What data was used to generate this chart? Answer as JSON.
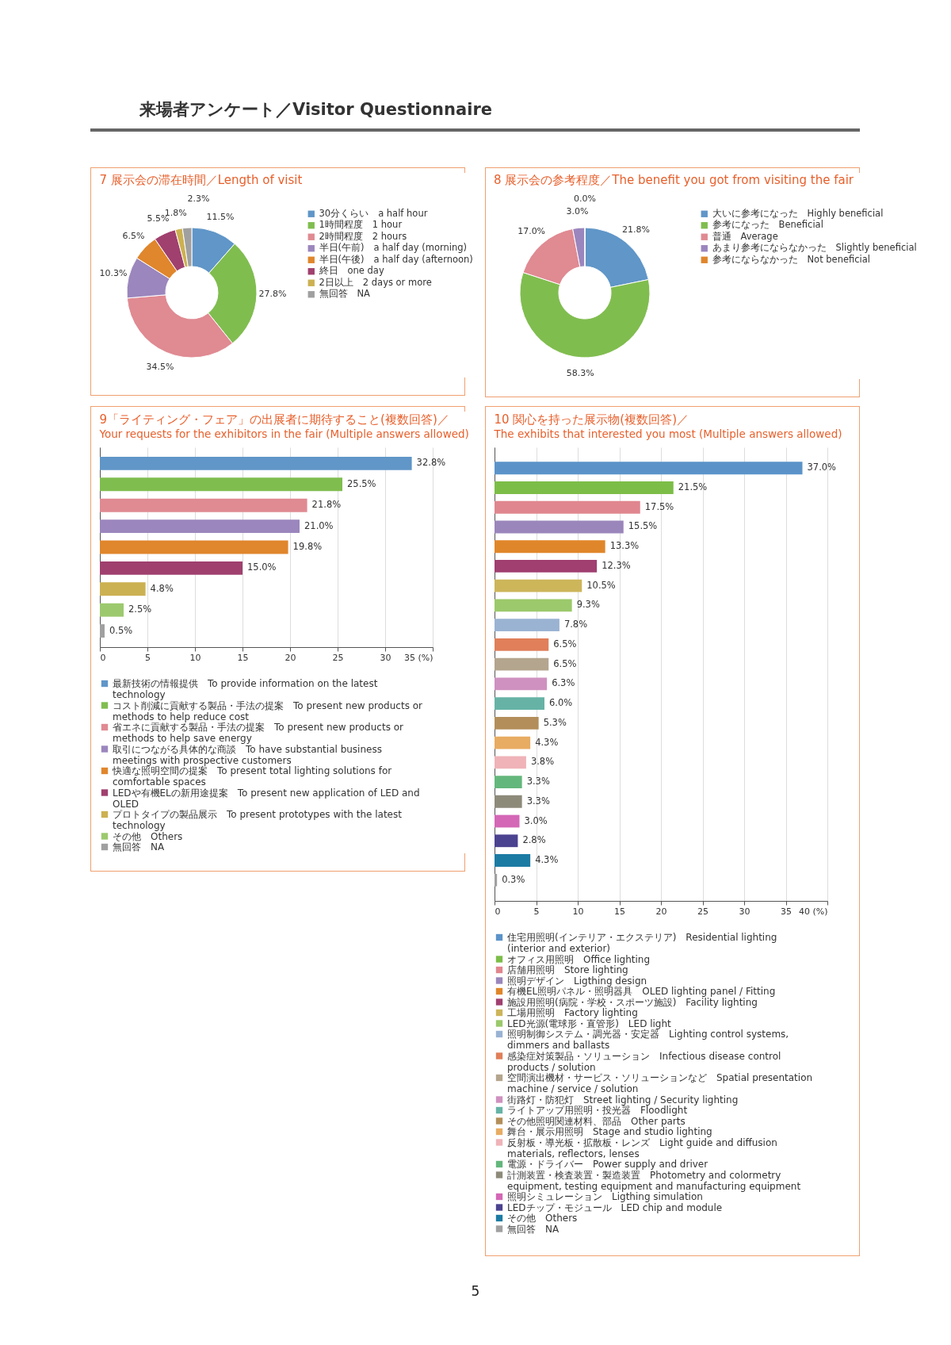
{
  "chart_data": [
    {
      "type": "donut",
      "title": "7 展示会の滞在時間／Length of visit",
      "annotations": [
        "来場者アンケート／Visitor Questionnaire",
        "5"
      ],
      "categories": [
        "30分くらい　a half hour",
        "1時間程度　1 hour",
        "2時間程度　2 hours",
        "半日(午前)　a half day (morning)",
        "半日(午後)　a half day (afternoon)",
        "終日　one day",
        "2日以上　2 days or more",
        "無回答　NA"
      ],
      "values": [
        11.5,
        27.8,
        34.5,
        10.3,
        6.5,
        5.5,
        1.8,
        2.3
      ],
      "value_labels": [
        "11.5%",
        "27.8%",
        "34.5%",
        "10.3%",
        "6.5%",
        "5.5%",
        "1.8%",
        "2.3%"
      ],
      "colors": [
        "#6096c8",
        "#80bd4f",
        "#e08a92",
        "#9b86bd",
        "#e0862c",
        "#a0406e",
        "#ccb152",
        "#a0a0a0"
      ],
      "legend": "right"
    },
    {
      "type": "donut",
      "title": "8 展示会の参考程度／The benefit you got from visiting the fair",
      "categories": [
        "大いに参考になった　Highly beneficial",
        "参考になった　Beneficial",
        "普通　Average",
        "あまり参考にならなかった　Slightly beneficial",
        "参考にならなかった　Not beneficial"
      ],
      "values": [
        21.8,
        58.3,
        17.0,
        3.0,
        0.0
      ],
      "value_labels": [
        "21.8%",
        "58.3%",
        "17.0%",
        "3.0%",
        "0.0%"
      ],
      "colors": [
        "#6096c8",
        "#80bd4f",
        "#e08a92",
        "#9b86bd",
        "#e0862c"
      ],
      "legend": "right"
    },
    {
      "type": "bar",
      "orientation": "horizontal",
      "title": "9「ライティング・フェア」の出展者に期待すること(複数回答)／",
      "subtitle": "Your requests for the exhibitors in the fair (Multiple answers allowed)",
      "categories": [
        null
      ],
      "series": [
        {
          "name": "最新技術の情報提供　To provide information on the latest technology",
          "color": "#6096c8",
          "values": [
            32.8
          ],
          "value_labels": [
            "32.8%"
          ]
        },
        {
          "name": "コスト削減に貢献する製品・手法の提案　To present new products or methods to help reduce cost",
          "color": "#80bd4f",
          "values": [
            25.5
          ],
          "value_labels": [
            "25.5%"
          ]
        },
        {
          "name": "省エネに貢献する製品・手法の提案　To present new products or methods to help save energy",
          "color": "#e08a92",
          "values": [
            21.8
          ],
          "value_labels": [
            "21.8%"
          ]
        },
        {
          "name": "取引につながる具体的な商談　To have substantial business meetings with prospective customers",
          "color": "#9b86bd",
          "values": [
            21.0
          ],
          "value_labels": [
            "21.0%"
          ]
        },
        {
          "name": "快適な照明空間の提案　To present total lighting solutions for comfortable spaces",
          "color": "#e0862c",
          "values": [
            19.8
          ],
          "value_labels": [
            "19.8%"
          ]
        },
        {
          "name": "LEDや有機ELの新用途提案　To present new application of LED and OLED",
          "color": "#a0406e",
          "values": [
            15.0
          ],
          "value_labels": [
            "15.0%"
          ]
        },
        {
          "name": "プロトタイプの製品展示　To present prototypes with the latest technology",
          "color": "#ccb152",
          "values": [
            4.8
          ],
          "value_labels": [
            "4.8%"
          ]
        },
        {
          "name": "その他　Others",
          "color": "#9cc96e",
          "values": [
            2.5
          ],
          "value_labels": [
            "2.5%"
          ]
        },
        {
          "name": "無回答　NA",
          "color": "#a0a0a0",
          "values": [
            0.5
          ],
          "value_labels": [
            "0.5%"
          ]
        }
      ],
      "xlim": [
        0,
        35
      ],
      "xticks": [
        0,
        5,
        10,
        15,
        20,
        25,
        30,
        {
          "value": 35,
          "label": "35 (%)"
        }
      ],
      "grid": "x",
      "tick_labels": "x",
      "legend": "bottom"
    },
    {
      "type": "bar",
      "orientation": "horizontal",
      "title": "10 関心を持った展示物(複数回答)／",
      "subtitle": "The exhibits that interested you most (Multiple answers allowed)",
      "categories": [
        null
      ],
      "series": [
        {
          "name": "住宅用照明(インテリア・エクステリア)　Residential lighting (interior and exterior)",
          "color": "#5b93c9",
          "values": [
            37.0
          ],
          "value_labels": [
            "37.0%"
          ]
        },
        {
          "name": "オフィス用照明　Office lighting",
          "color": "#7cbd48",
          "values": [
            21.5
          ],
          "value_labels": [
            "21.5%"
          ]
        },
        {
          "name": "店舗用照明　Store lighting",
          "color": "#e0868f",
          "values": [
            17.5
          ],
          "value_labels": [
            "17.5%"
          ]
        },
        {
          "name": "照明デザイン　Ligthing design",
          "color": "#9a86bb",
          "values": [
            15.5
          ],
          "value_labels": [
            "15.5%"
          ]
        },
        {
          "name": "有機EL照明パネル・照明器具　OLED lighting panel / Fitting",
          "color": "#e0862a",
          "values": [
            13.3
          ],
          "value_labels": [
            "13.3%"
          ]
        },
        {
          "name": "施設用照明(病院・学校・スポーツ施設)　Facility lighting",
          "color": "#a03f70",
          "values": [
            12.3
          ],
          "value_labels": [
            "12.3%"
          ]
        },
        {
          "name": "工場用照明　Factory lighting",
          "color": "#cdb55a",
          "values": [
            10.5
          ],
          "value_labels": [
            "10.5%"
          ]
        },
        {
          "name": "LED光源(電球形・直管形)　LED light",
          "color": "#9bc96b",
          "values": [
            9.3
          ],
          "value_labels": [
            "9.3%"
          ]
        },
        {
          "name": "照明制御システム・調光器・安定器　Lighting control systems, dimmers and ballasts",
          "color": "#9ab3d3",
          "values": [
            7.8
          ],
          "value_labels": [
            "7.8%"
          ]
        },
        {
          "name": "感染症対策製品・ソリューション　Infectious disease control products / solution",
          "color": "#e07f5a",
          "values": [
            6.5
          ],
          "value_labels": [
            "6.5%"
          ]
        },
        {
          "name": "空間演出機材・サービス・ソリューションなど　Spatial presentation machine / service / solution",
          "color": "#b4a58e",
          "values": [
            6.5
          ],
          "value_labels": [
            "6.5%"
          ]
        },
        {
          "name": "街路灯・防犯灯　Street lighting / Security lighting",
          "color": "#cf91c0",
          "values": [
            6.3
          ],
          "value_labels": [
            "6.3%"
          ]
        },
        {
          "name": "ライトアップ用照明・投光器　Floodlight",
          "color": "#66b3a6",
          "values": [
            6.0
          ],
          "value_labels": [
            "6.0%"
          ]
        },
        {
          "name": "その他照明関連材料、部品　Other parts",
          "color": "#b38e5a",
          "values": [
            5.3
          ],
          "value_labels": [
            "5.3%"
          ]
        },
        {
          "name": "舞台・展示用照明　Stage and studio lighting",
          "color": "#e8ac62",
          "values": [
            4.3
          ],
          "value_labels": [
            "4.3%"
          ]
        },
        {
          "name": "反射板・導光板・拡散板・レンズ　Light guide and diffusion materials, reflectors, lenses",
          "color": "#efb3b8",
          "values": [
            3.8
          ],
          "value_labels": [
            "3.8%"
          ]
        },
        {
          "name": "電源・ドライバー　Power supply and driver",
          "color": "#64b77c",
          "values": [
            3.3
          ],
          "value_labels": [
            "3.3%"
          ]
        },
        {
          "name": "計測装置・検査装置・製造装置　Photometry and colormetry equipment, testing equipment and manufacturing equipment",
          "color": "#8e8a7a",
          "values": [
            3.3
          ],
          "value_labels": [
            "3.3%"
          ]
        },
        {
          "name": "照明シミュレーション　Ligthing simulation",
          "color": "#d467b6",
          "values": [
            3.0
          ],
          "value_labels": [
            "3.0%"
          ]
        },
        {
          "name": "LEDチップ・モジュール　LED chip and module",
          "color": "#4b4290",
          "values": [
            2.8
          ],
          "value_labels": [
            "2.8%"
          ]
        },
        {
          "name": "その他　Others",
          "color": "#1c7ba3",
          "values": [
            4.3
          ],
          "value_labels": [
            "4.3%"
          ]
        },
        {
          "name": "無回答　NA",
          "color": "#a0a0a0",
          "values": [
            0.3
          ],
          "value_labels": [
            "0.3%"
          ]
        }
      ],
      "xlim": [
        0,
        40
      ],
      "xticks": [
        0,
        5,
        10,
        15,
        20,
        25,
        30,
        35,
        {
          "value": 40,
          "label": "40 (%)"
        }
      ],
      "grid": "x",
      "tick_labels": "x",
      "legend": "bottom"
    }
  ]
}
